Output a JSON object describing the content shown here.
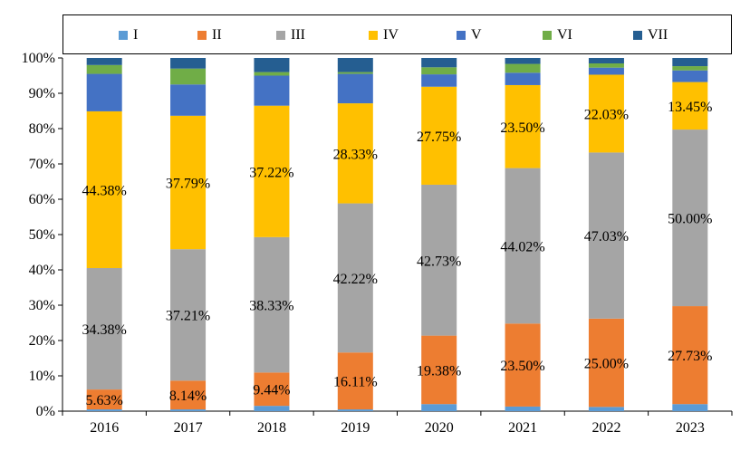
{
  "chart_data": {
    "type": "bar",
    "stacked": true,
    "percent": true,
    "categories": [
      "2016",
      "2017",
      "2018",
      "2019",
      "2020",
      "2021",
      "2022",
      "2023"
    ],
    "y_ticks": [
      "0%",
      "10%",
      "20%",
      "30%",
      "40%",
      "50%",
      "60%",
      "70%",
      "80%",
      "90%",
      "100%"
    ],
    "ylim": [
      0,
      100
    ],
    "grid": false,
    "legend_position": "top",
    "series": [
      {
        "name": "I",
        "color": "#5B9BD5",
        "values": [
          0.5,
          0.5,
          1.5,
          0.5,
          2.0,
          1.3,
          1.2,
          2.0
        ]
      },
      {
        "name": "II",
        "color": "#ED7D31",
        "values": [
          5.63,
          8.14,
          9.44,
          16.11,
          19.38,
          23.5,
          25.0,
          27.73
        ]
      },
      {
        "name": "III",
        "color": "#A5A5A5",
        "values": [
          34.38,
          37.21,
          38.33,
          42.22,
          42.73,
          44.02,
          47.03,
          50.0
        ]
      },
      {
        "name": "IV",
        "color": "#FFC000",
        "values": [
          44.38,
          37.79,
          37.22,
          28.33,
          27.75,
          23.5,
          22.03,
          13.45
        ]
      },
      {
        "name": "V",
        "color": "#4472C4",
        "values": [
          10.61,
          8.86,
          8.51,
          8.34,
          3.5,
          3.5,
          2.0,
          3.3
        ]
      },
      {
        "name": "VI",
        "color": "#70AD47",
        "values": [
          2.5,
          4.5,
          1.0,
          0.5,
          2.0,
          2.5,
          1.2,
          1.2
        ]
      },
      {
        "name": "VII",
        "color": "#255E91",
        "values": [
          2.0,
          3.0,
          4.0,
          4.0,
          2.64,
          1.68,
          1.54,
          2.32
        ]
      }
    ],
    "data_labels": {
      "II": [
        "5.63%",
        "8.14%",
        "9.44%",
        "16.11%",
        "19.38%",
        "23.50%",
        "25.00%",
        "27.73%"
      ],
      "III": [
        "34.38%",
        "37.21%",
        "38.33%",
        "42.22%",
        "42.73%",
        "44.02%",
        "47.03%",
        "50.00%"
      ],
      "IV": [
        "44.38%",
        "37.79%",
        "37.22%",
        "28.33%",
        "27.75%",
        "23.50%",
        "22.03%",
        "13.45%"
      ]
    }
  }
}
